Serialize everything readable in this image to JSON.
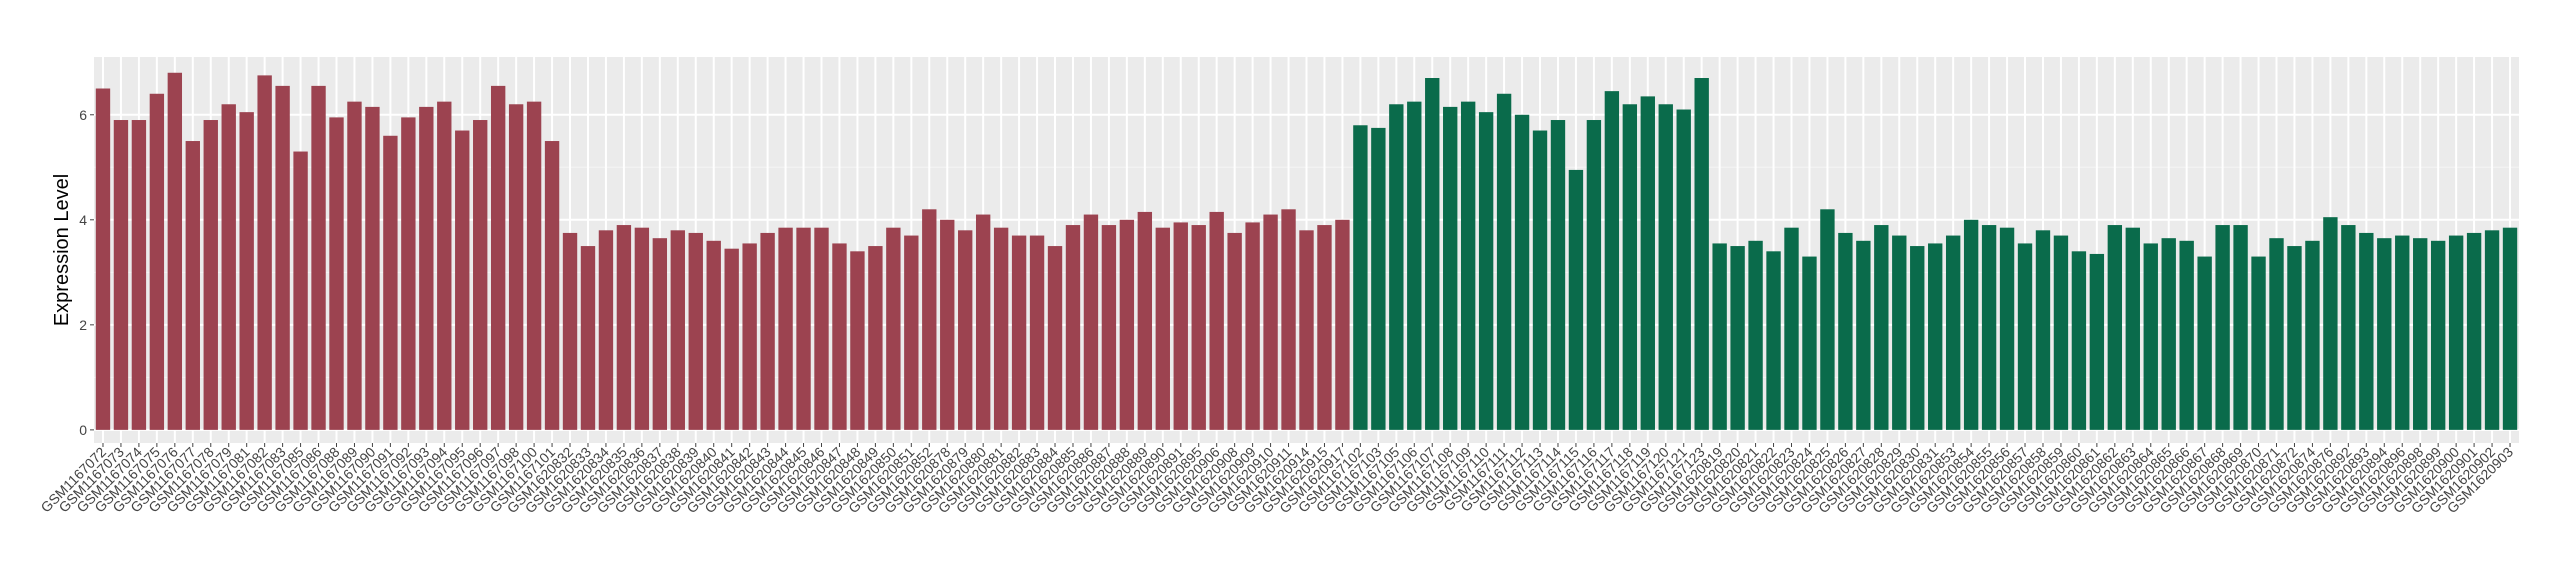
{
  "chart_data": {
    "type": "bar",
    "ylabel": "Expression Level",
    "categories": [
      "GSM1167072",
      "GSM1167073",
      "GSM1167074",
      "GSM1167075",
      "GSM1167076",
      "GSM1167077",
      "GSM1167078",
      "GSM1167079",
      "GSM1167081",
      "GSM1167082",
      "GSM1167083",
      "GSM1167085",
      "GSM1167086",
      "GSM1167088",
      "GSM1167089",
      "GSM1167090",
      "GSM1167091",
      "GSM1167092",
      "GSM1167093",
      "GSM1167094",
      "GSM1167095",
      "GSM1167096",
      "GSM1167097",
      "GSM1167098",
      "GSM1167100",
      "GSM1167101",
      "GSM1620832",
      "GSM1620833",
      "GSM1620834",
      "GSM1620835",
      "GSM1620836",
      "GSM1620837",
      "GSM1620838",
      "GSM1620839",
      "GSM1620840",
      "GSM1620841",
      "GSM1620842",
      "GSM1620843",
      "GSM1620844",
      "GSM1620845",
      "GSM1620846",
      "GSM1620847",
      "GSM1620848",
      "GSM1620849",
      "GSM1620850",
      "GSM1620851",
      "GSM1620852",
      "GSM1620878",
      "GSM1620879",
      "GSM1620880",
      "GSM1620881",
      "GSM1620882",
      "GSM1620883",
      "GSM1620884",
      "GSM1620885",
      "GSM1620886",
      "GSM1620887",
      "GSM1620888",
      "GSM1620889",
      "GSM1620890",
      "GSM1620891",
      "GSM1620895",
      "GSM1620906",
      "GSM1620908",
      "GSM1620909",
      "GSM1620910",
      "GSM1620911",
      "GSM1620914",
      "GSM1620915",
      "GSM1620917",
      "GSM1167102",
      "GSM1167103",
      "GSM1167105",
      "GSM1167106",
      "GSM1167107",
      "GSM1167108",
      "GSM1167109",
      "GSM1167110",
      "GSM1167111",
      "GSM1167112",
      "GSM1167113",
      "GSM1167114",
      "GSM1167115",
      "GSM1167116",
      "GSM1167117",
      "GSM1167118",
      "GSM1167119",
      "GSM1167120",
      "GSM1167121",
      "GSM1167123",
      "GSM1620819",
      "GSM1620820",
      "GSM1620821",
      "GSM1620822",
      "GSM1620823",
      "GSM1620824",
      "GSM1620825",
      "GSM1620826",
      "GSM1620827",
      "GSM1620828",
      "GSM1620829",
      "GSM1620830",
      "GSM1620831",
      "GSM1620853",
      "GSM1620854",
      "GSM1620855",
      "GSM1620856",
      "GSM1620857",
      "GSM1620858",
      "GSM1620859",
      "GSM1620860",
      "GSM1620861",
      "GSM1620862",
      "GSM1620863",
      "GSM1620864",
      "GSM1620865",
      "GSM1620866",
      "GSM1620867",
      "GSM1620868",
      "GSM1620869",
      "GSM1620870",
      "GSM1620871",
      "GSM1620872",
      "GSM1620874",
      "GSM1620876",
      "GSM1620892",
      "GSM1620893",
      "GSM1620894",
      "GSM1620896",
      "GSM1620898",
      "GSM1620899",
      "GSM1620900",
      "GSM1620901",
      "GSM1620902",
      "GSM1620903"
    ],
    "values": [
      6.5,
      5.9,
      5.9,
      6.4,
      6.8,
      5.5,
      5.9,
      6.2,
      6.05,
      6.75,
      6.55,
      5.3,
      6.55,
      5.95,
      6.25,
      6.15,
      5.6,
      5.95,
      6.15,
      6.25,
      5.7,
      5.9,
      6.55,
      6.2,
      6.25,
      5.5,
      3.75,
      3.5,
      3.8,
      3.9,
      3.85,
      3.65,
      3.8,
      3.75,
      3.6,
      3.45,
      3.55,
      3.75,
      3.85,
      3.85,
      3.85,
      3.55,
      3.4,
      3.5,
      3.85,
      3.7,
      4.2,
      4.0,
      3.8,
      4.1,
      3.85,
      3.7,
      3.7,
      3.5,
      3.9,
      4.1,
      3.9,
      4.0,
      4.15,
      3.85,
      3.95,
      3.9,
      4.15,
      3.75,
      3.95,
      4.1,
      4.2,
      3.8,
      3.9,
      4.0,
      5.8,
      5.75,
      6.2,
      6.25,
      6.7,
      6.15,
      6.25,
      6.05,
      6.4,
      6.0,
      5.7,
      5.9,
      4.95,
      5.9,
      6.45,
      6.2,
      6.35,
      6.2,
      6.1,
      6.7,
      3.55,
      3.5,
      3.6,
      3.4,
      3.85,
      3.3,
      4.2,
      3.75,
      3.6,
      3.9,
      3.7,
      3.5,
      3.55,
      3.7,
      4.0,
      3.9,
      3.85,
      3.55,
      3.8,
      3.7,
      3.4,
      3.35,
      3.9,
      3.85,
      3.55,
      3.65,
      3.6,
      3.3,
      3.9,
      3.9,
      3.3,
      3.65,
      3.5,
      3.6,
      4.05,
      3.9,
      3.75,
      3.65,
      3.7,
      3.65,
      3.6,
      3.7,
      3.75,
      3.8,
      3.85
    ],
    "colors": {
      "groups": [
        [
          0,
          70,
          "#9c4350"
        ],
        [
          70,
          135,
          "#0a6b4b"
        ]
      ]
    },
    "ylim": [
      -0.25,
      7.1
    ],
    "yticks": [
      0,
      2,
      4,
      6
    ],
    "yminor": [
      1,
      3,
      5
    ],
    "grid": true
  }
}
